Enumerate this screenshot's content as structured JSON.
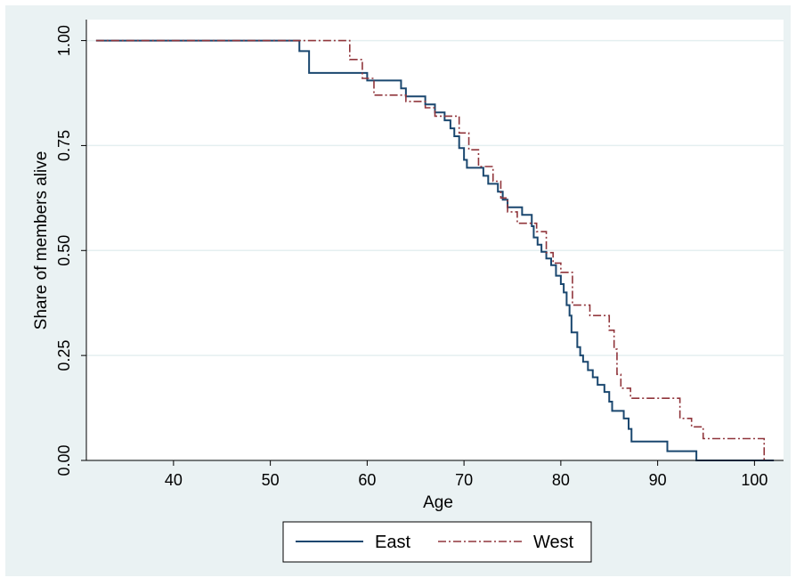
{
  "chart_data": {
    "type": "line",
    "subtype": "step (Kaplan-Meier survival)",
    "xlabel": "Age",
    "ylabel": "Share of members alive",
    "xlim": [
      31,
      103
    ],
    "ylim": [
      0,
      1.05
    ],
    "x_ticks": [
      40,
      50,
      60,
      70,
      80,
      90,
      100
    ],
    "x_tick_labels": [
      "40",
      "50",
      "60",
      "70",
      "80",
      "90",
      "100"
    ],
    "y_ticks": [
      0,
      0.25,
      0.5,
      0.75,
      1.0
    ],
    "y_tick_labels": [
      "0.00",
      "0.25",
      "0.50",
      "0.75",
      "1.00"
    ],
    "grid": "horizontal",
    "legend": "bottom",
    "series": [
      {
        "name": "East",
        "color": "#1a476f",
        "line_style": "solid",
        "points": [
          [
            32,
            1.0
          ],
          [
            53,
            1.0
          ],
          [
            53,
            0.975
          ],
          [
            54,
            0.975
          ],
          [
            54,
            0.923
          ],
          [
            60,
            0.923
          ],
          [
            60,
            0.905
          ],
          [
            63.5,
            0.905
          ],
          [
            63.5,
            0.886
          ],
          [
            64,
            0.886
          ],
          [
            64,
            0.867
          ],
          [
            66,
            0.867
          ],
          [
            66,
            0.848
          ],
          [
            67,
            0.848
          ],
          [
            67,
            0.829
          ],
          [
            68,
            0.829
          ],
          [
            68,
            0.81
          ],
          [
            68.6,
            0.81
          ],
          [
            68.6,
            0.791
          ],
          [
            69,
            0.791
          ],
          [
            69,
            0.772
          ],
          [
            69.5,
            0.772
          ],
          [
            69.5,
            0.744
          ],
          [
            70,
            0.744
          ],
          [
            70,
            0.716
          ],
          [
            70.3,
            0.716
          ],
          [
            70.3,
            0.697
          ],
          [
            72,
            0.697
          ],
          [
            72,
            0.678
          ],
          [
            72.5,
            0.678
          ],
          [
            72.5,
            0.659
          ],
          [
            73.5,
            0.659
          ],
          [
            73.5,
            0.64
          ],
          [
            74,
            0.64
          ],
          [
            74,
            0.621
          ],
          [
            74.5,
            0.621
          ],
          [
            74.5,
            0.603
          ],
          [
            76,
            0.603
          ],
          [
            76,
            0.585
          ],
          [
            77,
            0.585
          ],
          [
            77,
            0.558
          ],
          [
            77.2,
            0.558
          ],
          [
            77.2,
            0.531
          ],
          [
            77.6,
            0.531
          ],
          [
            77.6,
            0.514
          ],
          [
            78,
            0.514
          ],
          [
            78,
            0.497
          ],
          [
            78.5,
            0.497
          ],
          [
            78.5,
            0.481
          ],
          [
            79,
            0.481
          ],
          [
            79,
            0.465
          ],
          [
            79.5,
            0.465
          ],
          [
            79.5,
            0.44
          ],
          [
            80,
            0.44
          ],
          [
            80,
            0.42
          ],
          [
            80.3,
            0.42
          ],
          [
            80.3,
            0.4
          ],
          [
            80.6,
            0.4
          ],
          [
            80.6,
            0.37
          ],
          [
            80.9,
            0.37
          ],
          [
            80.9,
            0.345
          ],
          [
            81.1,
            0.345
          ],
          [
            81.1,
            0.305
          ],
          [
            81.7,
            0.305
          ],
          [
            81.7,
            0.27
          ],
          [
            82,
            0.27
          ],
          [
            82,
            0.25
          ],
          [
            82.3,
            0.25
          ],
          [
            82.3,
            0.235
          ],
          [
            82.8,
            0.235
          ],
          [
            82.8,
            0.215
          ],
          [
            83.3,
            0.215
          ],
          [
            83.3,
            0.198
          ],
          [
            83.8,
            0.198
          ],
          [
            83.8,
            0.18
          ],
          [
            84.5,
            0.18
          ],
          [
            84.5,
            0.163
          ],
          [
            85,
            0.163
          ],
          [
            85,
            0.14
          ],
          [
            85.3,
            0.14
          ],
          [
            85.3,
            0.118
          ],
          [
            86.5,
            0.118
          ],
          [
            86.5,
            0.1
          ],
          [
            87,
            0.1
          ],
          [
            87,
            0.075
          ],
          [
            87.3,
            0.075
          ],
          [
            87.3,
            0.045
          ],
          [
            91,
            0.045
          ],
          [
            91,
            0.022
          ],
          [
            94,
            0.022
          ],
          [
            94,
            0.0
          ],
          [
            102,
            0.0
          ]
        ]
      },
      {
        "name": "West",
        "color": "#90353b",
        "line_style": "dash-dot",
        "points": [
          [
            32,
            1.0
          ],
          [
            58.2,
            1.0
          ],
          [
            58.2,
            0.955
          ],
          [
            59.5,
            0.955
          ],
          [
            59.5,
            0.91
          ],
          [
            60.7,
            0.91
          ],
          [
            60.7,
            0.87
          ],
          [
            64,
            0.87
          ],
          [
            64,
            0.855
          ],
          [
            66,
            0.855
          ],
          [
            66,
            0.84
          ],
          [
            67,
            0.84
          ],
          [
            67,
            0.82
          ],
          [
            69.5,
            0.82
          ],
          [
            69.5,
            0.78
          ],
          [
            70.5,
            0.78
          ],
          [
            70.5,
            0.74
          ],
          [
            71.5,
            0.74
          ],
          [
            71.5,
            0.7
          ],
          [
            73,
            0.7
          ],
          [
            73,
            0.665
          ],
          [
            73.8,
            0.665
          ],
          [
            73.8,
            0.625
          ],
          [
            74.5,
            0.625
          ],
          [
            74.5,
            0.592
          ],
          [
            75.5,
            0.592
          ],
          [
            75.5,
            0.565
          ],
          [
            77.5,
            0.565
          ],
          [
            77.5,
            0.545
          ],
          [
            78.5,
            0.545
          ],
          [
            78.5,
            0.495
          ],
          [
            79.2,
            0.495
          ],
          [
            79.2,
            0.47
          ],
          [
            80,
            0.47
          ],
          [
            80,
            0.448
          ],
          [
            81.2,
            0.448
          ],
          [
            81.2,
            0.37
          ],
          [
            83,
            0.37
          ],
          [
            83,
            0.345
          ],
          [
            85,
            0.345
          ],
          [
            85,
            0.31
          ],
          [
            85.5,
            0.31
          ],
          [
            85.5,
            0.265
          ],
          [
            85.8,
            0.265
          ],
          [
            85.8,
            0.205
          ],
          [
            86.2,
            0.205
          ],
          [
            86.2,
            0.172
          ],
          [
            87.2,
            0.172
          ],
          [
            87.2,
            0.148
          ],
          [
            92.3,
            0.148
          ],
          [
            92.3,
            0.1
          ],
          [
            93.5,
            0.1
          ],
          [
            93.5,
            0.08
          ],
          [
            94.7,
            0.08
          ],
          [
            94.7,
            0.052
          ],
          [
            101,
            0.052
          ],
          [
            101,
            0.0
          ]
        ]
      }
    ]
  }
}
